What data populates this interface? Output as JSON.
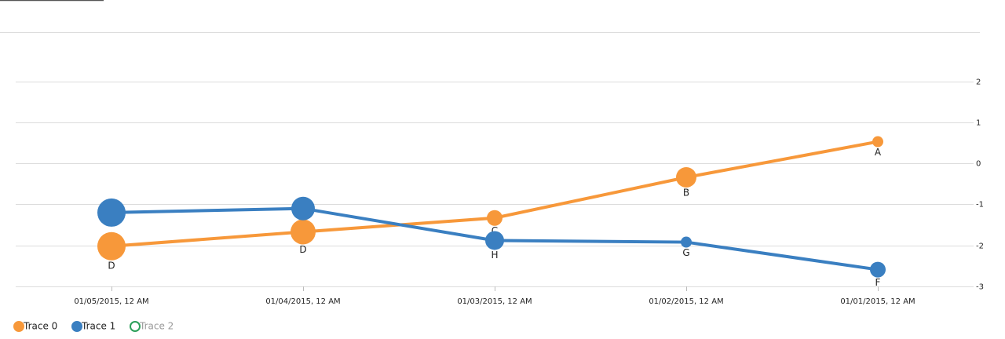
{
  "chart_data": {
    "type": "line",
    "categories": [
      "01/05/2015, 12 AM",
      "01/04/2015, 12 AM",
      "01/03/2015, 12 AM",
      "01/02/2015, 12 AM",
      "01/01/2015, 12 AM"
    ],
    "series": [
      {
        "name": "Trace 0",
        "color": "#f7983a",
        "visible": true,
        "values": [
          -2.02,
          -1.67,
          -1.33,
          -0.34,
          0.53
        ],
        "sizes": [
          36,
          32,
          20,
          26,
          14
        ],
        "labels": [
          "D",
          "D",
          "C",
          "B",
          "A"
        ]
      },
      {
        "name": "Trace 1",
        "color": "#3a7fc1",
        "visible": true,
        "values": [
          -1.2,
          -1.1,
          -1.88,
          -1.92,
          -2.59
        ],
        "sizes": [
          36,
          30,
          24,
          14,
          20
        ],
        "labels": [
          null,
          null,
          "H",
          "G",
          "F"
        ]
      },
      {
        "name": "Trace 2",
        "color": "#2ca05a",
        "visible": false,
        "values": [
          null,
          null,
          null,
          null,
          null
        ]
      }
    ],
    "ylim": [
      -3,
      3.2
    ],
    "yticks": [
      -3,
      -2,
      -1,
      0,
      1,
      2
    ],
    "grid": true,
    "legend": "bottom-left"
  }
}
